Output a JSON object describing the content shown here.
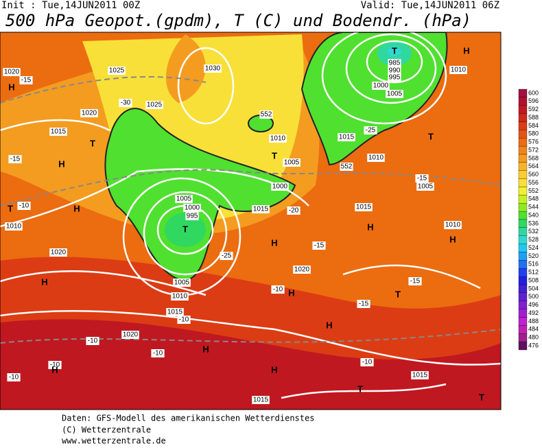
{
  "header": {
    "init": "Init : Tue,14JUN2011 00Z",
    "valid": "Valid: Tue,14JUN2011 06Z",
    "title": "500 hPa Geopot.(gpdm), T (C) und Bodendr. (hPa)"
  },
  "colorbar": {
    "values": [
      600,
      596,
      592,
      588,
      584,
      580,
      576,
      572,
      568,
      564,
      560,
      556,
      552,
      548,
      544,
      540,
      536,
      532,
      528,
      524,
      520,
      516,
      512,
      508,
      504,
      500,
      496,
      492,
      488,
      484,
      480,
      476
    ],
    "colors": [
      "#a01040",
      "#b01030",
      "#c01820",
      "#d02818",
      "#dc3c14",
      "#e45414",
      "#ec6c10",
      "#f0841c",
      "#f49c20",
      "#f8b428",
      "#fccc30",
      "#f8e038",
      "#f0f030",
      "#c8f020",
      "#90e820",
      "#50e030",
      "#30d860",
      "#30d8a0",
      "#30d8d0",
      "#20c8f0",
      "#20a0f0",
      "#2070f0",
      "#2040f0",
      "#2020e0",
      "#4020d0",
      "#6020d0",
      "#8020d0",
      "#a020d0",
      "#c020d0",
      "#c020b0",
      "#a02090",
      "#601060"
    ]
  },
  "map": {
    "labels": [
      "1020",
      "-15",
      "H",
      "1025",
      "1030",
      "1025",
      "-30",
      "1020",
      "1015",
      "T",
      "H",
      "-15",
      "T",
      "-10",
      "1010",
      "H",
      "1005",
      "1000",
      "995",
      "T",
      "-25",
      "1005",
      "1010",
      "1015",
      "1020",
      "-10",
      "H",
      "1020",
      "H",
      "1020",
      "-15",
      "T",
      "985",
      "990",
      "995",
      "1000",
      "1005",
      "H",
      "1010",
      "-25",
      "1015",
      "1010",
      "T",
      "-15",
      "1005",
      "1010",
      "H",
      "-15",
      "T",
      "H",
      "-10",
      "-15",
      "H",
      "-10",
      "1015",
      "T",
      "T",
      "H",
      "1015",
      "-10",
      "-10",
      "H",
      "-10",
      "H",
      "-10",
      "1015",
      "H",
      "1000",
      "T",
      "1005",
      "552",
      "552",
      "1010",
      "-20",
      "1015"
    ]
  },
  "footer": {
    "lines": [
      "Daten: GFS-Modell des amerikanischen Wetterdienstes",
      "(C) Wetterzentrale",
      "www.wetterzentrale.de"
    ]
  }
}
